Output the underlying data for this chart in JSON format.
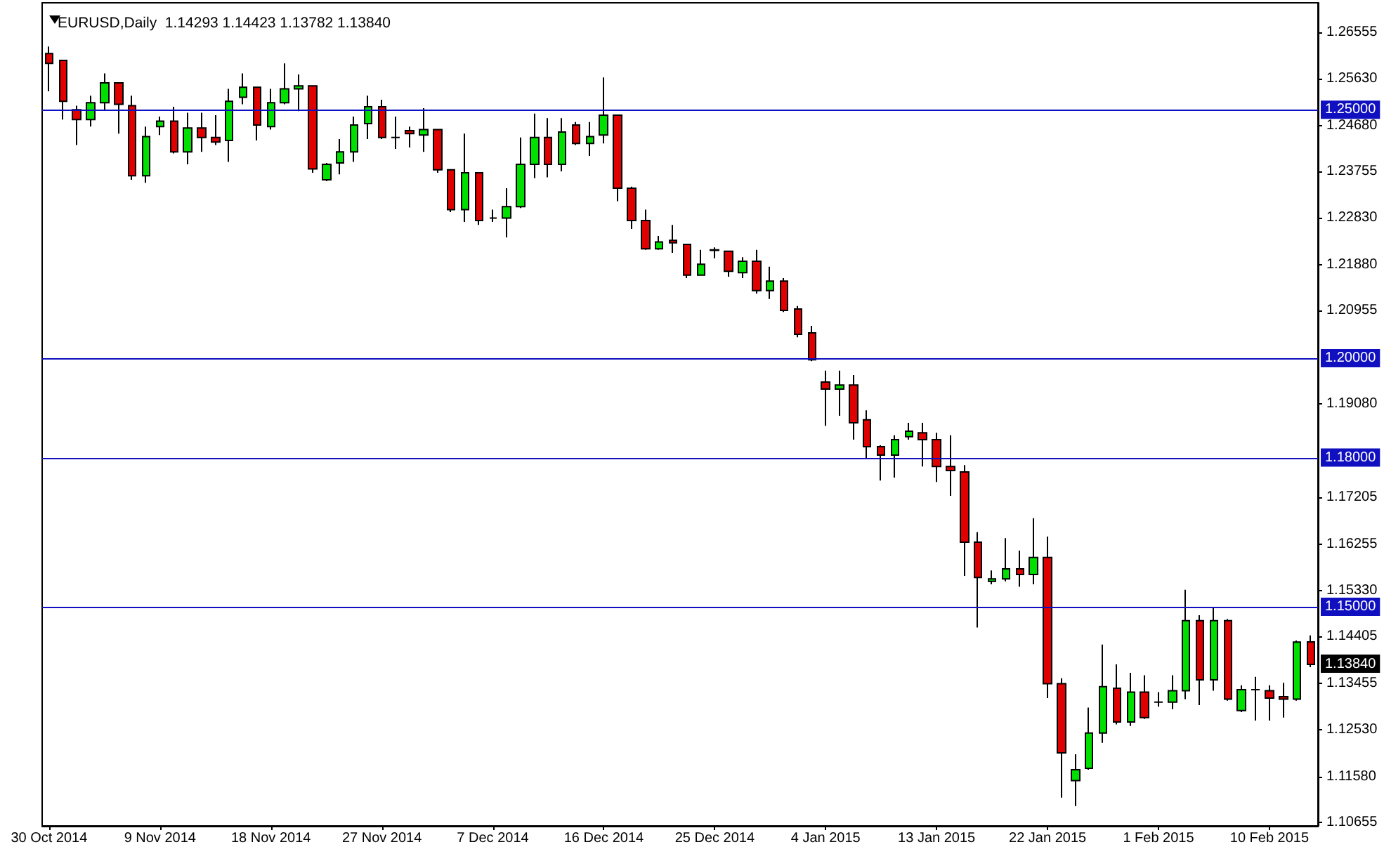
{
  "chart_data": {
    "type": "candlestick",
    "title": "EURUSD,Daily  1.14293 1.14423 1.13782 1.13840",
    "categories": [
      "30 Oct 2014",
      null,
      null,
      null,
      null,
      null,
      null,
      null,
      "9 Nov 2014",
      null,
      null,
      null,
      null,
      null,
      null,
      null,
      "18 Nov 2014",
      null,
      null,
      null,
      null,
      null,
      null,
      null,
      "27 Nov 2014",
      null,
      null,
      null,
      null,
      null,
      null,
      null,
      "7 Dec 2014",
      null,
      null,
      null,
      null,
      null,
      null,
      null,
      "16 Dec 2014",
      null,
      null,
      null,
      null,
      null,
      null,
      null,
      "25 Dec 2014",
      null,
      null,
      null,
      null,
      null,
      null,
      null,
      "4 Jan 2015",
      null,
      null,
      null,
      null,
      null,
      null,
      null,
      "13 Jan 2015",
      null,
      null,
      null,
      null,
      null,
      null,
      null,
      "22 Jan 2015",
      null,
      null,
      null,
      null,
      null,
      null,
      null,
      "1 Feb 2015",
      null,
      null,
      null,
      null,
      null,
      null,
      null,
      "10 Feb 2015",
      null,
      null,
      null
    ],
    "ohlc": [
      [
        1.2613,
        1.2627,
        1.2537,
        1.2593
      ],
      [
        1.2599,
        1.2599,
        1.248,
        1.2517
      ],
      [
        1.25,
        1.2508,
        1.2429,
        1.248
      ],
      [
        1.248,
        1.2528,
        1.2466,
        1.2514
      ],
      [
        1.2514,
        1.2573,
        1.25,
        1.2554
      ],
      [
        1.2554,
        1.2554,
        1.2452,
        1.2511
      ],
      [
        1.2508,
        1.2528,
        1.2359,
        1.2367
      ],
      [
        1.2367,
        1.2466,
        1.2353,
        1.2446
      ],
      [
        1.2466,
        1.2486,
        1.2449,
        1.2477
      ],
      [
        1.2477,
        1.2506,
        1.2412,
        1.2415
      ],
      [
        1.2415,
        1.2494,
        1.239,
        1.2463
      ],
      [
        1.2463,
        1.2494,
        1.2415,
        1.2444
      ],
      [
        1.2444,
        1.2489,
        1.2429,
        1.2435
      ],
      [
        1.2438,
        1.2542,
        1.2395,
        1.2517
      ],
      [
        1.2525,
        1.2573,
        1.2511,
        1.2545
      ],
      [
        1.2545,
        1.2545,
        1.2438,
        1.2469
      ],
      [
        1.2466,
        1.2542,
        1.246,
        1.2514
      ],
      [
        1.2514,
        1.2593,
        1.2511,
        1.2542
      ],
      [
        1.2542,
        1.2571,
        1.2497,
        1.2548
      ],
      [
        1.2548,
        1.2548,
        1.2373,
        1.2381
      ],
      [
        1.2359,
        1.2393,
        1.2356,
        1.239
      ],
      [
        1.2393,
        1.2441,
        1.237,
        1.2415
      ],
      [
        1.2415,
        1.2486,
        1.2395,
        1.2469
      ],
      [
        1.2472,
        1.2528,
        1.2441,
        1.2506
      ],
      [
        1.2506,
        1.252,
        1.2441,
        1.2444
      ],
      [
        1.2444,
        1.2486,
        1.2421,
        1.2444
      ],
      [
        1.2458,
        1.2466,
        1.2424,
        1.2452
      ],
      [
        1.2449,
        1.2503,
        1.2415,
        1.246
      ],
      [
        1.246,
        1.246,
        1.2373,
        1.2379
      ],
      [
        1.2379,
        1.2379,
        1.2294,
        1.2299
      ],
      [
        1.2299,
        1.2452,
        1.2274,
        1.2373
      ],
      [
        1.2373,
        1.2373,
        1.2268,
        1.2277
      ],
      [
        1.2282,
        1.2299,
        1.2274,
        1.2282
      ],
      [
        1.2282,
        1.2342,
        1.2243,
        1.2305
      ],
      [
        1.2305,
        1.2444,
        1.2302,
        1.239
      ],
      [
        1.239,
        1.2492,
        1.2362,
        1.2444
      ],
      [
        1.2444,
        1.2483,
        1.2364,
        1.239
      ],
      [
        1.239,
        1.2483,
        1.2376,
        1.2455
      ],
      [
        1.2469,
        1.2475,
        1.2429,
        1.2432
      ],
      [
        1.2432,
        1.2475,
        1.2407,
        1.2446
      ],
      [
        1.2449,
        1.2565,
        1.2432,
        1.2489
      ],
      [
        1.2489,
        1.2489,
        1.2316,
        1.2342
      ],
      [
        1.2342,
        1.2345,
        1.226,
        1.2277
      ],
      [
        1.2277,
        1.2299,
        1.2218,
        1.222
      ],
      [
        1.222,
        1.2246,
        1.2218,
        1.2234
      ],
      [
        1.2237,
        1.2268,
        1.2212,
        1.2232
      ],
      [
        1.2229,
        1.2229,
        1.2161,
        1.2167
      ],
      [
        1.2167,
        1.2218,
        1.2167,
        1.2189
      ],
      [
        1.2218,
        1.2223,
        1.2201,
        1.2217
      ],
      [
        1.2215,
        1.2215,
        1.2164,
        1.2175
      ],
      [
        1.2172,
        1.2203,
        1.2161,
        1.2195
      ],
      [
        1.2195,
        1.2218,
        1.213,
        1.2136
      ],
      [
        1.2136,
        1.2184,
        1.2119,
        1.2155
      ],
      [
        1.2155,
        1.2161,
        1.2093,
        1.2096
      ],
      [
        1.2099,
        1.2105,
        1.2042,
        1.2048
      ],
      [
        1.2051,
        1.2065,
        1.1994,
        1.1997
      ],
      [
        1.1952,
        1.1975,
        1.1864,
        1.1938
      ],
      [
        1.1938,
        1.1975,
        1.1884,
        1.1946
      ],
      [
        1.1946,
        1.1966,
        1.1836,
        1.187
      ],
      [
        1.1876,
        1.1895,
        1.1799,
        1.1822
      ],
      [
        1.1822,
        1.1825,
        1.1754,
        1.1805
      ],
      [
        1.1805,
        1.1845,
        1.176,
        1.1836
      ],
      [
        1.1842,
        1.187,
        1.1836,
        1.1853
      ],
      [
        1.185,
        1.187,
        1.1782,
        1.1836
      ],
      [
        1.1836,
        1.185,
        1.1751,
        1.1782
      ],
      [
        1.1782,
        1.1845,
        1.1723,
        1.1774
      ],
      [
        1.1771,
        1.1785,
        1.1562,
        1.163
      ],
      [
        1.163,
        1.165,
        1.1458,
        1.1559
      ],
      [
        1.1551,
        1.1573,
        1.1545,
        1.1556
      ],
      [
        1.1556,
        1.1638,
        1.1551,
        1.1576
      ],
      [
        1.1576,
        1.1613,
        1.154,
        1.1565
      ],
      [
        1.1565,
        1.1678,
        1.1545,
        1.1599
      ],
      [
        1.1599,
        1.1641,
        1.1316,
        1.1345
      ],
      [
        1.1345,
        1.1356,
        1.1116,
        1.1206
      ],
      [
        1.115,
        1.1203,
        1.1099,
        1.1172
      ],
      [
        1.1175,
        1.1297,
        1.1172,
        1.1246
      ],
      [
        1.1246,
        1.1424,
        1.1226,
        1.1339
      ],
      [
        1.1336,
        1.1384,
        1.1263,
        1.1268
      ],
      [
        1.1268,
        1.1367,
        1.126,
        1.1328
      ],
      [
        1.1328,
        1.1362,
        1.1274,
        1.1277
      ],
      [
        1.1308,
        1.1328,
        1.1299,
        1.1308
      ],
      [
        1.1308,
        1.1362,
        1.1294,
        1.1331
      ],
      [
        1.1331,
        1.1534,
        1.1314,
        1.1472
      ],
      [
        1.1472,
        1.1483,
        1.1302,
        1.1353
      ],
      [
        1.1353,
        1.15,
        1.1331,
        1.1472
      ],
      [
        1.1472,
        1.1475,
        1.1311,
        1.1314
      ],
      [
        1.1291,
        1.1342,
        1.1288,
        1.1333
      ],
      [
        1.1333,
        1.1359,
        1.1271,
        1.1333
      ],
      [
        1.1331,
        1.1342,
        1.1271,
        1.1316
      ],
      [
        1.1319,
        1.1347,
        1.1277,
        1.1314
      ],
      [
        1.1314,
        1.1432,
        1.1311,
        1.1429
      ],
      [
        1.14293,
        1.14423,
        1.13782,
        1.1384
      ]
    ],
    "colors": [
      "#e00000",
      "#e00000",
      "#e00000",
      "#00e000",
      "#00e000",
      "#e00000",
      "#e00000",
      "#00e000",
      "#00e000",
      "#e00000",
      "#00e000",
      "#e00000",
      "#e00000",
      "#00e000",
      "#00e000",
      "#e00000",
      "#00e000",
      "#00e000",
      "#00e000",
      "#e00000",
      "#00e000",
      "#00e000",
      "#00e000",
      "#00e000",
      "#e00000",
      "#000000",
      "#e00000",
      "#00e000",
      "#e00000",
      "#e00000",
      "#00e000",
      "#e00000",
      "#000000",
      "#00e000",
      "#00e000",
      "#00e000",
      "#e00000",
      "#00e000",
      "#e00000",
      "#00e000",
      "#00e000",
      "#e00000",
      "#e00000",
      "#e00000",
      "#00e000",
      "#e00000",
      "#e00000",
      "#00e000",
      "#e00000",
      "#e00000",
      "#00e000",
      "#e00000",
      "#00e000",
      "#e00000",
      "#e00000",
      "#e00000",
      "#e00000",
      "#00e000",
      "#e00000",
      "#e00000",
      "#e00000",
      "#00e000",
      "#00e000",
      "#e00000",
      "#e00000",
      "#e00000",
      "#e00000",
      "#e00000",
      "#00e000",
      "#00e000",
      "#e00000",
      "#00e000",
      "#e00000",
      "#e00000",
      "#00e000",
      "#00e000",
      "#00e000",
      "#e00000",
      "#00e000",
      "#e00000",
      "#000000",
      "#00e000",
      "#00e000",
      "#e00000",
      "#00e000",
      "#e00000",
      "#00e000",
      "#000000",
      "#e00000",
      "#e00000",
      "#00e000",
      "#e00000"
    ],
    "ylim": [
      1.1059,
      1.2715
    ],
    "yticks": [
      {
        "value": 1.26555,
        "label": "1.26555"
      },
      {
        "value": 1.2563,
        "label": "1.25630"
      },
      {
        "value": 1.2468,
        "label": "1.24680"
      },
      {
        "value": 1.23755,
        "label": "1.23755"
      },
      {
        "value": 1.2283,
        "label": "1.22830"
      },
      {
        "value": 1.2188,
        "label": "1.21880"
      },
      {
        "value": 1.20955,
        "label": "1.20955"
      },
      {
        "value": 1.1908,
        "label": "1.19080"
      },
      {
        "value": 1.17205,
        "label": "1.17205"
      },
      {
        "value": 1.16255,
        "label": "1.16255"
      },
      {
        "value": 1.1533,
        "label": "1.15330"
      },
      {
        "value": 1.14405,
        "label": "1.14405"
      },
      {
        "value": 1.13455,
        "label": "1.13455"
      },
      {
        "value": 1.1253,
        "label": "1.12530"
      },
      {
        "value": 1.1158,
        "label": "1.11580"
      },
      {
        "value": 1.10655,
        "label": "1.10655"
      }
    ],
    "ref_lines": [
      {
        "axis": "y",
        "value": 1.25,
        "label": "1.25000",
        "color": "#1010c0"
      },
      {
        "axis": "y",
        "value": 1.2,
        "label": "1.20000",
        "color": "#1010c0"
      },
      {
        "axis": "y",
        "value": 1.18,
        "label": "1.18000",
        "color": "#1010c0"
      },
      {
        "axis": "y",
        "value": 1.15,
        "label": "1.15000",
        "color": "#1010c0"
      }
    ],
    "annotations": [
      "1.13840"
    ],
    "grid": false
  }
}
